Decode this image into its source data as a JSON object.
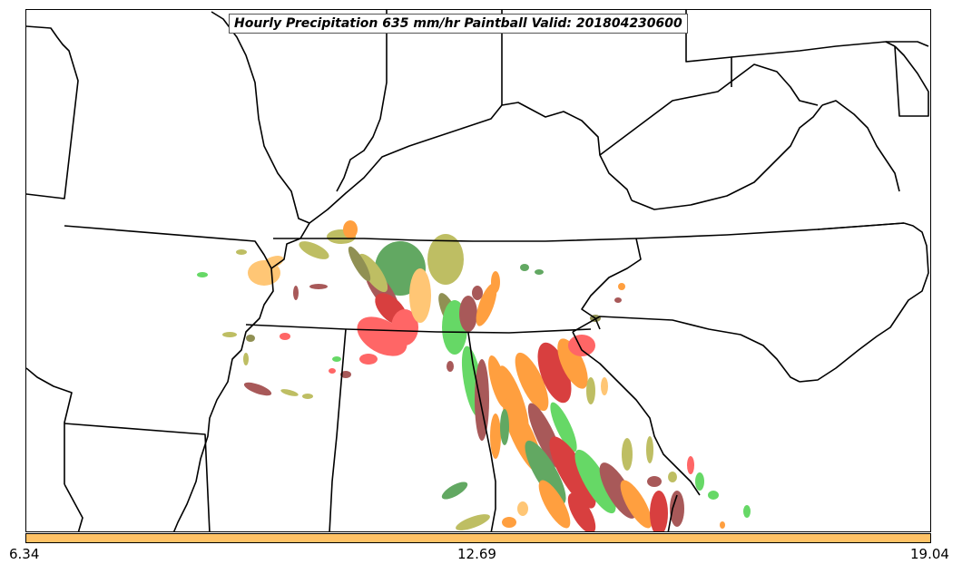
{
  "title": "Hourly Precipitation 635 mm/hr Paintball Valid: 201804230600",
  "colorbar": {
    "min_label": "6.34",
    "mid_label": "12.69",
    "max_label": "19.04",
    "color": "#ffc266"
  },
  "paint_colors": {
    "red": "#ff3333",
    "dark_red": "#cc0000",
    "orange": "#ff7f00",
    "light_orange": "#ffb347",
    "green": "#33cc33",
    "dark_green": "#2e8b2e",
    "olive": "#a9a930",
    "brown": "#8b2222",
    "olive_dark": "#6b6b1a"
  }
}
